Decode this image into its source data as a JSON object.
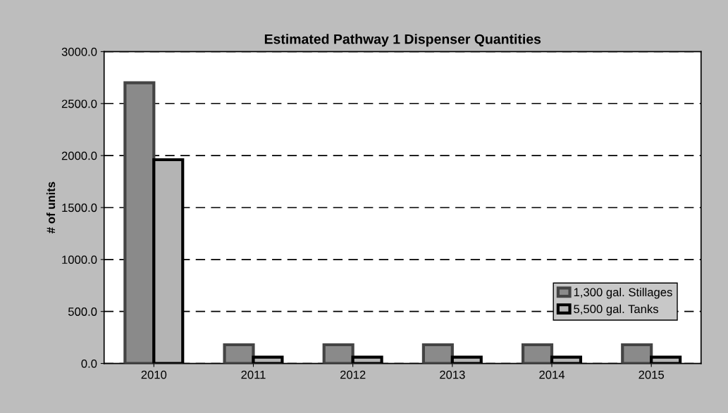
{
  "chart_data": {
    "type": "bar",
    "title": "Estimated Pathway 1 Dispenser Quantities",
    "ylabel": "# of units",
    "categories": [
      "2010",
      "2011",
      "2012",
      "2013",
      "2014",
      "2015"
    ],
    "series": [
      {
        "name": "1,300 gal. Stillages",
        "color": "#8a8a8a",
        "values": [
          2700,
          180,
          180,
          180,
          180,
          180
        ]
      },
      {
        "name": "5,500 gal. Tanks",
        "color": "#b4b4b4",
        "values": [
          1960,
          60,
          60,
          60,
          60,
          60
        ]
      }
    ],
    "ylim": [
      0,
      3000
    ],
    "yticks": [
      {
        "value": 0,
        "label": "0.0"
      },
      {
        "value": 500,
        "label": "500.0"
      },
      {
        "value": 1000,
        "label": "1000.0"
      },
      {
        "value": 1500,
        "label": "1500.0"
      },
      {
        "value": 2000,
        "label": "2000.0"
      },
      {
        "value": 2500,
        "label": "2500.0"
      },
      {
        "value": 3000,
        "label": "3000.0"
      }
    ],
    "grid": "y",
    "legend": "lower right",
    "line_style": "dashed"
  }
}
